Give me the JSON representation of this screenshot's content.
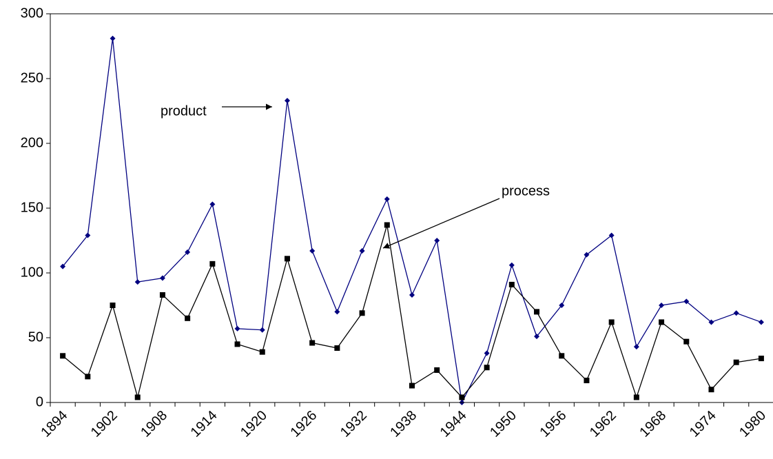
{
  "chart_data": {
    "type": "line",
    "categories": [
      "1894",
      null,
      "1902",
      null,
      "1908",
      null,
      "1914",
      null,
      "1920",
      null,
      "1926",
      null,
      "1932",
      null,
      "1938",
      null,
      "1944",
      null,
      "1950",
      null,
      "1956",
      null,
      "1962",
      null,
      "1968",
      null,
      "1974",
      null,
      "1980"
    ],
    "series": [
      {
        "color": "#000080",
        "marker": "diamond",
        "values": [
          105,
          129,
          281,
          93,
          96,
          116,
          153,
          57,
          56,
          233,
          117,
          70,
          117,
          157,
          83,
          125,
          0,
          38,
          106,
          51,
          75,
          114,
          129,
          43,
          75,
          78,
          62,
          69,
          62
        ]
      },
      {
        "color": "#000000",
        "marker": "square",
        "values": [
          36,
          20,
          75,
          4,
          83,
          65,
          107,
          45,
          39,
          111,
          46,
          42,
          69,
          137,
          13,
          25,
          4,
          27,
          91,
          70,
          36,
          17,
          62,
          4,
          62,
          47,
          10,
          31,
          34
        ]
      }
    ],
    "annotations": [
      "product",
      "process"
    ],
    "ylim": [
      0,
      300
    ],
    "yticks": [
      0,
      50,
      100,
      150,
      200,
      250,
      300
    ],
    "grid": false
  }
}
